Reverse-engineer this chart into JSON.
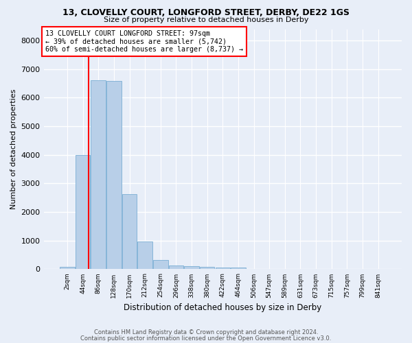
{
  "title": "13, CLOVELLY COURT, LONGFORD STREET, DERBY, DE22 1GS",
  "subtitle": "Size of property relative to detached houses in Derby",
  "xlabel": "Distribution of detached houses by size in Derby",
  "ylabel": "Number of detached properties",
  "bar_color": "#b8cfe8",
  "bar_edge_color": "#7aadd4",
  "background_color": "#e8eef8",
  "grid_color": "#ffffff",
  "bin_labels": [
    "2sqm",
    "44sqm",
    "86sqm",
    "128sqm",
    "170sqm",
    "212sqm",
    "254sqm",
    "296sqm",
    "338sqm",
    "380sqm",
    "422sqm",
    "464sqm",
    "506sqm",
    "547sqm",
    "589sqm",
    "631sqm",
    "673sqm",
    "715sqm",
    "757sqm",
    "799sqm",
    "841sqm"
  ],
  "bar_heights": [
    75,
    4000,
    6600,
    6580,
    2620,
    960,
    330,
    140,
    115,
    75,
    65,
    55,
    0,
    0,
    0,
    0,
    0,
    0,
    0,
    0,
    0
  ],
  "property_line_bin_index": 1.35,
  "ylim": [
    0,
    8400
  ],
  "yticks": [
    0,
    1000,
    2000,
    3000,
    4000,
    5000,
    6000,
    7000,
    8000
  ],
  "annotation_text": "13 CLOVELLY COURT LONGFORD STREET: 97sqm\n← 39% of detached houses are smaller (5,742)\n60% of semi-detached houses are larger (8,737) →",
  "footer_line1": "Contains HM Land Registry data © Crown copyright and database right 2024.",
  "footer_line2": "Contains public sector information licensed under the Open Government Licence v3.0.",
  "fig_width": 6.0,
  "fig_height": 5.0,
  "dpi": 100
}
